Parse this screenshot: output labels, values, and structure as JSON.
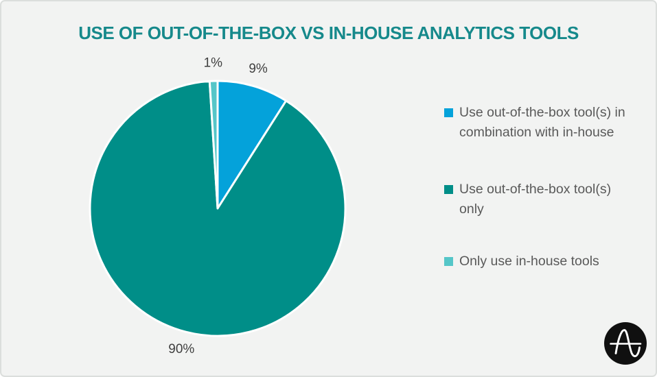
{
  "title": "USE OF OUT-OF-THE-BOX VS IN-HOUSE ANALYTICS TOOLS",
  "title_color": "#16898B",
  "background_color": "#F2F3F2",
  "chart_data": {
    "type": "pie",
    "title": "USE OF OUT-OF-THE-BOX VS IN-HOUSE ANALYTICS TOOLS",
    "start_angle_deg": 0,
    "direction": "clockwise",
    "slice_border_color": "#FFFFFF",
    "label_color": "#3F3F3F",
    "legend_position": "right",
    "slices": [
      {
        "label": "Use out-of-the-box tool(s) in combination with in-house",
        "value": 9,
        "display_label": "9%",
        "color": "#04A2DA"
      },
      {
        "label": "Use out-of-the-box tool(s) only",
        "value": 90,
        "display_label": "90%",
        "color": "#008E88"
      },
      {
        "label": "Only use in-house tools",
        "value": 1,
        "display_label": "1%",
        "color": "#55C6C8"
      }
    ]
  },
  "legend": {
    "text_color": "#595959",
    "items": [
      {
        "label": "Use out-of-the-box tool(s) in combination with in-house",
        "color": "#04A2DA"
      },
      {
        "label": "Use out-of-the-box tool(s) only",
        "color": "#008E88"
      },
      {
        "label": "Only use in-house tools",
        "color": "#55C6C8"
      }
    ]
  },
  "logo": {
    "name": "amplitude-logo",
    "background": "#101010",
    "glyph_color": "#FFFFFF"
  }
}
